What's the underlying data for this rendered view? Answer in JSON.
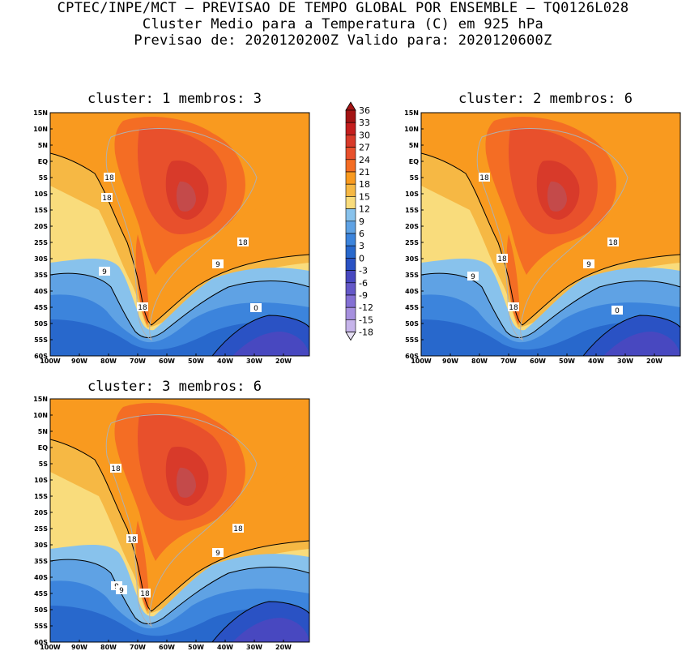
{
  "header": {
    "line1": "CPTEC/INPE/MCT – PREVISAO DE TEMPO GLOBAL POR ENSEMBLE – TQ0126L028",
    "line2": "Cluster Medio para a Temperatura (C) em 925 hPa",
    "line3": "Previsao de: 2020120200Z   Valido para: 2020120600Z"
  },
  "panels": [
    {
      "title": "cluster: 1   membros: 3",
      "contour_labels": [
        "18",
        "18",
        "18",
        "9",
        "9",
        "18",
        "0"
      ]
    },
    {
      "title": "cluster: 2   membros: 6",
      "contour_labels": [
        "18",
        "18",
        "18",
        "9",
        "9",
        "18",
        "0"
      ]
    },
    {
      "title": "cluster: 3   membros: 6",
      "contour_labels": [
        "18",
        "18",
        "18",
        "9",
        "9",
        "9",
        "18"
      ]
    }
  ],
  "lat_labels": [
    "15N",
    "10N",
    "5N",
    "EQ",
    "5S",
    "10S",
    "15S",
    "20S",
    "25S",
    "30S",
    "35S",
    "40S",
    "45S",
    "50S",
    "55S",
    "60S"
  ],
  "lon_labels": [
    "100W",
    "90W",
    "80W",
    "70W",
    "60W",
    "50W",
    "40W",
    "30W",
    "20W"
  ],
  "colorbar": {
    "labels": [
      "36",
      "33",
      "30",
      "27",
      "24",
      "21",
      "18",
      "15",
      "12",
      "9",
      "6",
      "3",
      "0",
      "-3",
      "-6",
      "-9",
      "-12",
      "-15",
      "-18"
    ],
    "colors": [
      "#a31414",
      "#c41e1e",
      "#d83a2a",
      "#e8502c",
      "#f46d24",
      "#f99a1f",
      "#f6b844",
      "#f9dc7c",
      "#88c2ec",
      "#5fa2e4",
      "#3c84dc",
      "#2868cc",
      "#2a52c4",
      "#4848c0",
      "#6458c8",
      "#8470d4",
      "#a690de",
      "#c6b4ea"
    ]
  }
}
